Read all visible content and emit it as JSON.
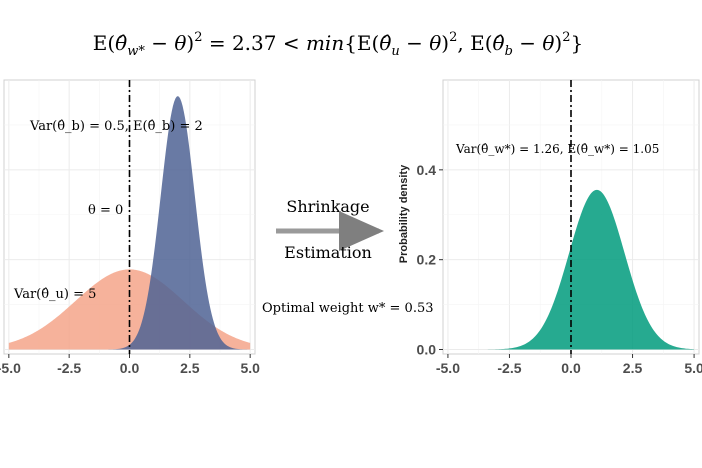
{
  "header": {
    "formula": "E(θ̂_w* − θ)² = 2.37 < min{E(θ̂_u − θ)², E(θ̂_b − θ)²}"
  },
  "middle": {
    "line1": "Shrinkage",
    "line2": "Estimation",
    "weight_label": "Optimal weight  w* = 0.53"
  },
  "chart_data": [
    {
      "type": "area",
      "title": "",
      "xlabel": "",
      "ylabel": "",
      "xlim": [
        -5.2,
        5.2
      ],
      "ylim": [
        -0.01,
        0.6
      ],
      "x_ticks": [
        -5.0,
        -2.5,
        0.0,
        2.5,
        5.0
      ],
      "x_tick_labels": [
        "-5.0",
        "-2.5",
        "0.0",
        "2.5",
        "5.0"
      ],
      "grid": true,
      "series": [
        {
          "name": "",
          "distribution": "normal",
          "mean": 0,
          "variance": 5,
          "color": "#f4a58a"
        },
        {
          "name": "",
          "distribution": "normal",
          "mean": 2,
          "variance": 0.5,
          "color": "#4f6394"
        }
      ],
      "vline": {
        "x": 0,
        "style": "dash-dot"
      },
      "annotations": {
        "biased": "Var(θ̂_b) = 0.5, E(θ̂_b) = 2",
        "theta": "θ = 0",
        "unbiased": "Var(θ̂_u) = 5"
      }
    },
    {
      "type": "area",
      "title": "",
      "xlabel": "",
      "ylabel": "Probability density",
      "xlim": [
        -5.2,
        5.2
      ],
      "ylim": [
        -0.01,
        0.6
      ],
      "x_ticks": [
        -5.0,
        -2.5,
        0.0,
        2.5,
        5.0
      ],
      "x_tick_labels": [
        "-5.0",
        "-2.5",
        "0.0",
        "2.5",
        "5.0"
      ],
      "y_ticks": [
        0.0,
        0.2,
        0.4
      ],
      "y_tick_labels": [
        "0.0",
        "0.2",
        "0.4"
      ],
      "grid": true,
      "series": [
        {
          "name": "",
          "distribution": "normal",
          "mean": 1.05,
          "variance": 1.26,
          "color": "#009b7d"
        }
      ],
      "vline": {
        "x": 0,
        "style": "dash-dot"
      },
      "annotations": {
        "shrunk": "Var(θ̂_w*) = 1.26, E(θ̂_w*) = 1.05"
      }
    }
  ]
}
